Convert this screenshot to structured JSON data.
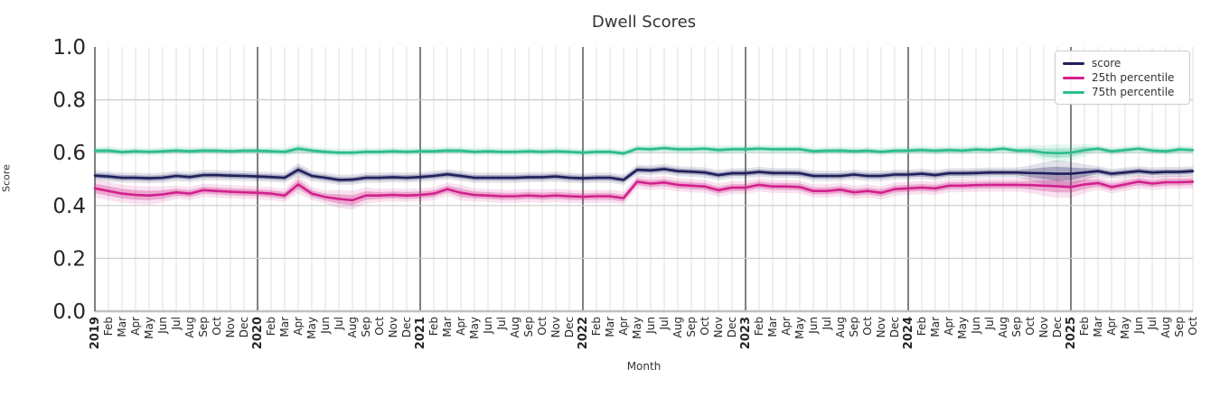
{
  "chart_data": {
    "type": "line",
    "title": "Dwell Scores",
    "xlabel": "Month",
    "ylabel": "Score",
    "ylim": [
      0.0,
      1.0
    ],
    "yticks": [
      0.0,
      0.2,
      0.4,
      0.6,
      0.8,
      1.0
    ],
    "grid": true,
    "legend_position": "upper right",
    "categories": [
      "2019",
      "Feb",
      "Mar",
      "Apr",
      "May",
      "Jun",
      "Jul",
      "Aug",
      "Sep",
      "Oct",
      "Nov",
      "Dec",
      "2020",
      "Feb",
      "Mar",
      "Apr",
      "May",
      "Jun",
      "Jul",
      "Aug",
      "Sep",
      "Oct",
      "Nov",
      "Dec",
      "2021",
      "Feb",
      "Mar",
      "Apr",
      "May",
      "Jun",
      "Jul",
      "Aug",
      "Sep",
      "Oct",
      "Nov",
      "Dec",
      "2022",
      "Feb",
      "Mar",
      "Apr",
      "May",
      "Jun",
      "Jul",
      "Aug",
      "Sep",
      "Oct",
      "Nov",
      "Dec",
      "2023",
      "Feb",
      "Mar",
      "Apr",
      "May",
      "Jun",
      "Jul",
      "Aug",
      "Sep",
      "Oct",
      "Nov",
      "Dec",
      "2024",
      "Feb",
      "Mar",
      "Apr",
      "May",
      "Jun",
      "Jul",
      "Aug",
      "Sep",
      "Oct",
      "Nov",
      "Dec",
      "2025",
      "Feb",
      "Mar",
      "Apr",
      "May",
      "Jun",
      "Jul",
      "Aug",
      "Sep",
      "Oct"
    ],
    "series": [
      {
        "name": "score",
        "color": "#1f1f5c",
        "values": [
          0.513,
          0.51,
          0.505,
          0.505,
          0.503,
          0.505,
          0.512,
          0.508,
          0.515,
          0.515,
          0.513,
          0.512,
          0.51,
          0.508,
          0.505,
          0.535,
          0.512,
          0.505,
          0.497,
          0.498,
          0.505,
          0.505,
          0.507,
          0.505,
          0.508,
          0.512,
          0.518,
          0.512,
          0.505,
          0.505,
          0.505,
          0.505,
          0.507,
          0.507,
          0.51,
          0.505,
          0.503,
          0.505,
          0.505,
          0.497,
          0.535,
          0.533,
          0.538,
          0.53,
          0.528,
          0.525,
          0.515,
          0.522,
          0.522,
          0.527,
          0.523,
          0.523,
          0.522,
          0.512,
          0.512,
          0.512,
          0.517,
          0.512,
          0.512,
          0.517,
          0.517,
          0.52,
          0.515,
          0.522,
          0.522,
          0.523,
          0.525,
          0.525,
          0.525,
          0.523,
          0.522,
          0.52,
          0.52,
          0.525,
          0.53,
          0.52,
          0.525,
          0.53,
          0.525,
          0.527,
          0.527,
          0.53
        ],
        "band": {
          "base": 0.01,
          "overrides": {
            "15": 0.013,
            "69": 0.015,
            "70": 0.022,
            "71": 0.027,
            "72": 0.024,
            "73": 0.016
          }
        }
      },
      {
        "name": "25th percentile",
        "color": "#d1218c",
        "values": [
          0.465,
          0.455,
          0.445,
          0.44,
          0.438,
          0.442,
          0.45,
          0.445,
          0.458,
          0.455,
          0.452,
          0.45,
          0.448,
          0.445,
          0.438,
          0.48,
          0.445,
          0.432,
          0.425,
          0.42,
          0.438,
          0.438,
          0.44,
          0.438,
          0.44,
          0.445,
          0.462,
          0.448,
          0.44,
          0.438,
          0.435,
          0.435,
          0.438,
          0.435,
          0.438,
          0.435,
          0.433,
          0.435,
          0.435,
          0.428,
          0.49,
          0.483,
          0.487,
          0.478,
          0.475,
          0.472,
          0.458,
          0.468,
          0.468,
          0.478,
          0.472,
          0.472,
          0.47,
          0.455,
          0.455,
          0.46,
          0.45,
          0.455,
          0.448,
          0.462,
          0.465,
          0.468,
          0.465,
          0.475,
          0.475,
          0.477,
          0.478,
          0.478,
          0.478,
          0.477,
          0.475,
          0.473,
          0.47,
          0.48,
          0.485,
          0.47,
          0.48,
          0.49,
          0.483,
          0.488,
          0.488,
          0.49
        ],
        "band": {
          "base": 0.013,
          "overrides": {
            "0": 0.018,
            "1": 0.018,
            "2": 0.018,
            "3": 0.018,
            "4": 0.018,
            "5": 0.016,
            "15": 0.018,
            "18": 0.018,
            "19": 0.019,
            "20": 0.016,
            "27": 0.016,
            "69": 0.016,
            "70": 0.02,
            "71": 0.023,
            "72": 0.021,
            "73": 0.018
          }
        }
      },
      {
        "name": "75th percentile",
        "color": "#2dbc8d",
        "values": [
          0.607,
          0.608,
          0.602,
          0.605,
          0.603,
          0.605,
          0.608,
          0.605,
          0.608,
          0.607,
          0.605,
          0.607,
          0.607,
          0.605,
          0.603,
          0.615,
          0.608,
          0.603,
          0.6,
          0.6,
          0.603,
          0.603,
          0.605,
          0.603,
          0.605,
          0.605,
          0.608,
          0.607,
          0.603,
          0.605,
          0.603,
          0.603,
          0.605,
          0.603,
          0.605,
          0.603,
          0.6,
          0.603,
          0.603,
          0.597,
          0.615,
          0.613,
          0.617,
          0.613,
          0.613,
          0.615,
          0.61,
          0.613,
          0.613,
          0.615,
          0.613,
          0.613,
          0.613,
          0.605,
          0.607,
          0.608,
          0.605,
          0.607,
          0.603,
          0.607,
          0.608,
          0.61,
          0.607,
          0.61,
          0.608,
          0.612,
          0.61,
          0.615,
          0.608,
          0.608,
          0.6,
          0.598,
          0.6,
          0.61,
          0.615,
          0.605,
          0.61,
          0.615,
          0.608,
          0.605,
          0.612,
          0.61
        ],
        "band": {
          "base": 0.008,
          "overrides": {
            "15": 0.01,
            "69": 0.01,
            "70": 0.015,
            "71": 0.018,
            "72": 0.016,
            "73": 0.012
          }
        }
      }
    ]
  }
}
